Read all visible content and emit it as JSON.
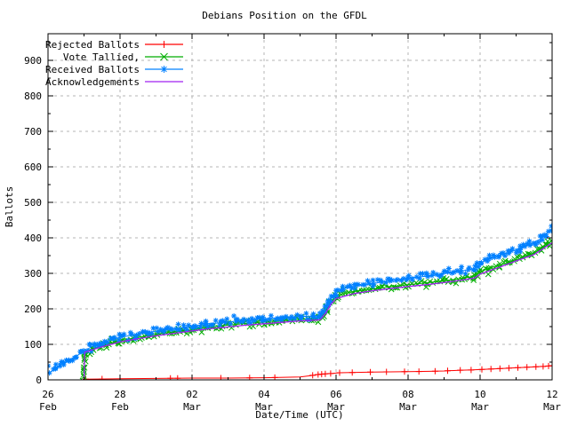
{
  "palette": {
    "background": "#ffffff",
    "axis": "#000000",
    "grid": "#b4b4b4",
    "rejected": "#ff0000",
    "tallied": "#00ae00",
    "received": "#0080ff",
    "acknowledgements": "#a020f0"
  },
  "chart_data": {
    "type": "line",
    "title": "Debians Position on the GFDL",
    "xlabel": "Date/Time (UTC)",
    "ylabel": "Ballots",
    "grid": true,
    "legend_position": "top-left-inside",
    "x_domain_days": [
      0,
      14
    ],
    "ylim": [
      0,
      975
    ],
    "y_ticks": [
      0,
      100,
      200,
      300,
      400,
      500,
      600,
      700,
      800,
      900
    ],
    "y_minor_ticks": [
      50,
      150,
      250,
      350,
      450,
      550,
      650,
      750,
      850,
      950
    ],
    "x_ticks_days": [
      0,
      2,
      4,
      6,
      8,
      10,
      12,
      14
    ],
    "x_minor_ticks_days": [
      1,
      3,
      5,
      7,
      9,
      11,
      13
    ],
    "x_tick_labels": [
      [
        "26",
        "Feb"
      ],
      [
        "28",
        "Feb"
      ],
      [
        "02",
        "Mar"
      ],
      [
        "04",
        "Mar"
      ],
      [
        "06",
        "Mar"
      ],
      [
        "08",
        "Mar"
      ],
      [
        "10",
        "Mar"
      ],
      [
        "12",
        "Mar"
      ]
    ],
    "series": [
      {
        "name": "Rejected Ballots",
        "color": "#ff0000",
        "marker": "plus",
        "style": "sparse-line",
        "points": [
          [
            1,
            2
          ],
          [
            2,
            3
          ],
          [
            3,
            4
          ],
          [
            4,
            5
          ],
          [
            5,
            5
          ],
          [
            6,
            6
          ],
          [
            7,
            8
          ],
          [
            7.3,
            12
          ],
          [
            7.5,
            15
          ],
          [
            7.7,
            17
          ],
          [
            7.9,
            18
          ],
          [
            8.1,
            20
          ],
          [
            9,
            22
          ],
          [
            10,
            23
          ],
          [
            10.6,
            24
          ],
          [
            11,
            25
          ],
          [
            11.4,
            27
          ],
          [
            11.8,
            28
          ],
          [
            12.2,
            30
          ],
          [
            12.6,
            32
          ],
          [
            13,
            34
          ],
          [
            13.4,
            36
          ],
          [
            13.8,
            38
          ],
          [
            14,
            40
          ]
        ],
        "marker_days": [
          1.05,
          1.5,
          3.4,
          3.6,
          4.8,
          5.6,
          6.3,
          7.35,
          7.5,
          7.6,
          7.7,
          7.85,
          8.1,
          8.45,
          8.95,
          9.4,
          9.9,
          10.3,
          10.75,
          11.1,
          11.45,
          11.75,
          12.05,
          12.3,
          12.55,
          12.8,
          13.05,
          13.3,
          13.55,
          13.75,
          13.9,
          14
        ]
      },
      {
        "name": "Vote Tallied,",
        "color": "#00ae00",
        "marker": "cross",
        "style": "dense",
        "seed": 7,
        "points": [
          [
            1,
            0
          ],
          [
            1.02,
            75
          ],
          [
            1.2,
            85
          ],
          [
            1.4,
            93
          ],
          [
            1.6,
            99
          ],
          [
            1.8,
            105
          ],
          [
            2,
            110
          ],
          [
            2.4,
            118
          ],
          [
            2.8,
            125
          ],
          [
            3.2,
            131
          ],
          [
            3.6,
            136
          ],
          [
            4,
            141
          ],
          [
            4.4,
            147
          ],
          [
            4.8,
            152
          ],
          [
            5.2,
            156
          ],
          [
            5.6,
            160
          ],
          [
            6,
            163
          ],
          [
            6.5,
            167
          ],
          [
            7,
            170
          ],
          [
            7.4,
            172
          ],
          [
            7.55,
            173
          ],
          [
            7.7,
            190
          ],
          [
            7.85,
            218
          ],
          [
            8,
            235
          ],
          [
            8.2,
            243
          ],
          [
            8.5,
            249
          ],
          [
            9,
            256
          ],
          [
            9.5,
            262
          ],
          [
            10,
            268
          ],
          [
            10.5,
            273
          ],
          [
            11,
            279
          ],
          [
            11.5,
            286
          ],
          [
            11.85,
            292
          ],
          [
            12,
            303
          ],
          [
            12.2,
            313
          ],
          [
            12.5,
            322
          ],
          [
            12.8,
            330
          ],
          [
            13.1,
            341
          ],
          [
            13.4,
            354
          ],
          [
            13.7,
            368
          ],
          [
            14,
            392
          ]
        ]
      },
      {
        "name": "Received Ballots",
        "color": "#0080ff",
        "marker": "asterisk",
        "style": "dense",
        "seed": 13,
        "points": [
          [
            0,
            18
          ],
          [
            0.2,
            30
          ],
          [
            0.4,
            44
          ],
          [
            0.6,
            57
          ],
          [
            0.8,
            68
          ],
          [
            1,
            80
          ],
          [
            1.2,
            93
          ],
          [
            1.4,
            102
          ],
          [
            1.6,
            108
          ],
          [
            1.8,
            114
          ],
          [
            2,
            120
          ],
          [
            2.4,
            127
          ],
          [
            2.8,
            134
          ],
          [
            3.2,
            140
          ],
          [
            3.6,
            145
          ],
          [
            4,
            151
          ],
          [
            4.4,
            157
          ],
          [
            4.8,
            161
          ],
          [
            5.2,
            165
          ],
          [
            5.6,
            169
          ],
          [
            6,
            172
          ],
          [
            6.5,
            175
          ],
          [
            7,
            178
          ],
          [
            7.4,
            180
          ],
          [
            7.55,
            181
          ],
          [
            7.7,
            200
          ],
          [
            7.85,
            230
          ],
          [
            8,
            248
          ],
          [
            8.2,
            257
          ],
          [
            8.5,
            263
          ],
          [
            9,
            271
          ],
          [
            9.5,
            279
          ],
          [
            10,
            287
          ],
          [
            10.5,
            292
          ],
          [
            11,
            299
          ],
          [
            11.5,
            307
          ],
          [
            11.85,
            314
          ],
          [
            12,
            328
          ],
          [
            12.2,
            340
          ],
          [
            12.5,
            350
          ],
          [
            12.8,
            358
          ],
          [
            13.1,
            370
          ],
          [
            13.4,
            383
          ],
          [
            13.7,
            398
          ],
          [
            14,
            425
          ]
        ]
      },
      {
        "name": "Acknowledgements",
        "color": "#a020f0",
        "marker": "none",
        "style": "line",
        "points": [
          [
            1,
            0
          ],
          [
            1.02,
            78
          ],
          [
            1.5,
            93
          ],
          [
            2,
            107
          ],
          [
            2.5,
            116
          ],
          [
            3,
            124
          ],
          [
            3.5,
            131
          ],
          [
            4,
            138
          ],
          [
            4.5,
            144
          ],
          [
            5,
            149
          ],
          [
            5.5,
            154
          ],
          [
            6,
            158
          ],
          [
            6.5,
            162
          ],
          [
            7,
            166
          ],
          [
            7.4,
            168
          ],
          [
            7.55,
            169
          ],
          [
            7.7,
            186
          ],
          [
            7.85,
            212
          ],
          [
            8,
            229
          ],
          [
            8.5,
            243
          ],
          [
            9,
            251
          ],
          [
            9.5,
            257
          ],
          [
            10,
            263
          ],
          [
            10.5,
            268
          ],
          [
            11,
            274
          ],
          [
            11.5,
            281
          ],
          [
            11.85,
            287
          ],
          [
            12,
            298
          ],
          [
            12.5,
            316
          ],
          [
            13,
            335
          ],
          [
            13.5,
            353
          ],
          [
            14,
            386
          ]
        ]
      }
    ]
  }
}
